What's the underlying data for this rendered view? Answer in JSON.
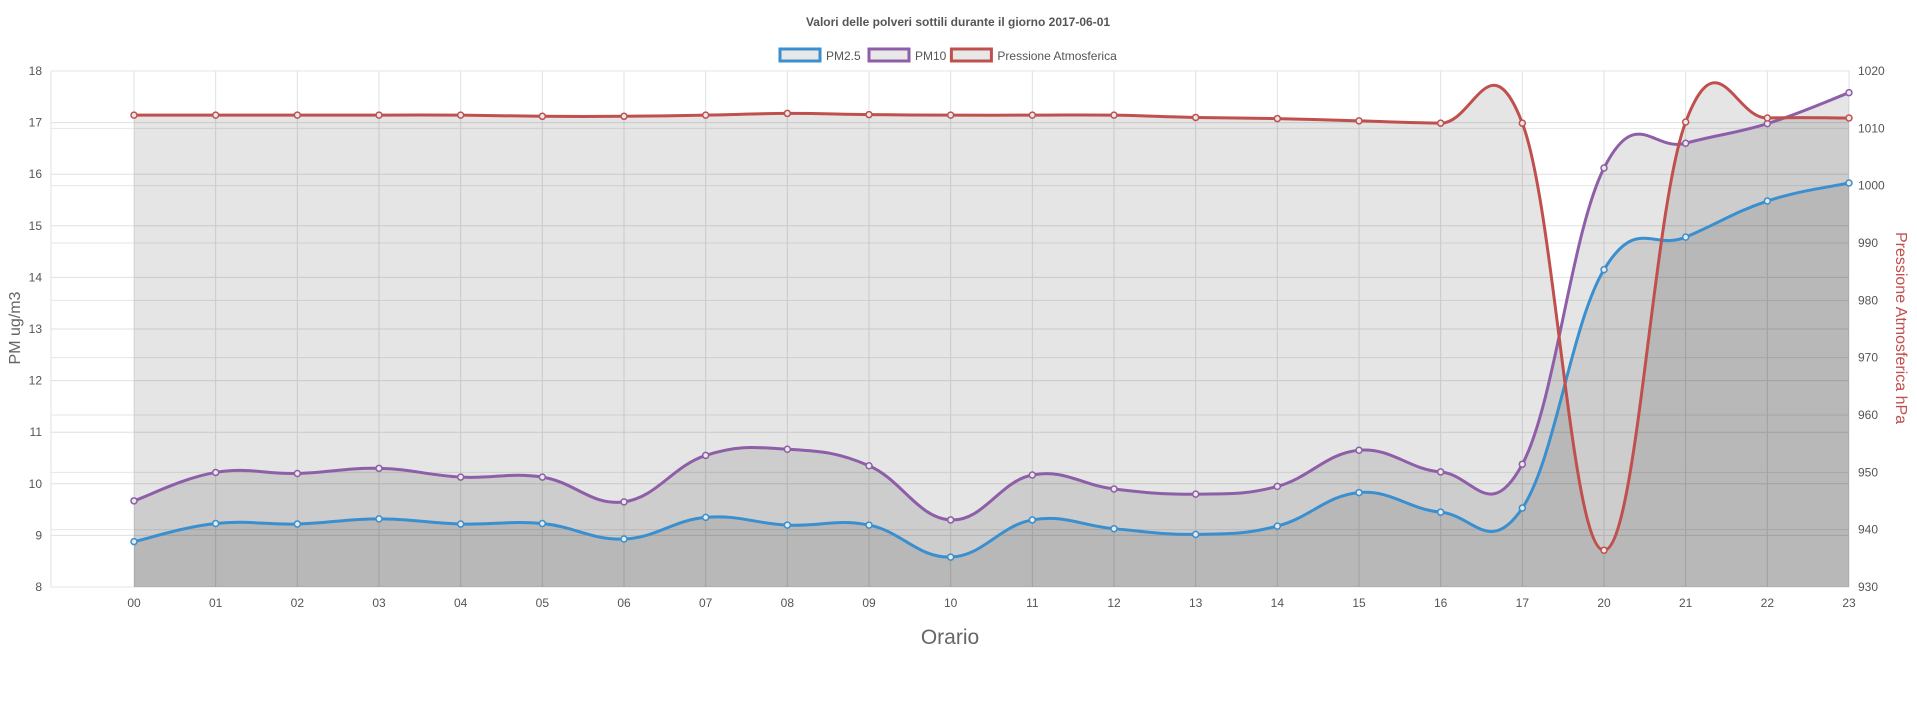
{
  "chart_data": {
    "type": "line",
    "title": "Valori delle polveri sottili durante il giorno 2017-06-01",
    "xlabel": "Orario",
    "ylabel_left": "PM ug/m3",
    "ylabel_right": "Pressione Atmosferica hPa",
    "ylim_left": [
      8,
      18
    ],
    "ylim_right": [
      930,
      1020
    ],
    "yticks_left": [
      8,
      9,
      10,
      11,
      12,
      13,
      14,
      15,
      16,
      17,
      18
    ],
    "yticks_right": [
      930,
      940,
      950,
      960,
      970,
      980,
      990,
      1000,
      1010,
      1020
    ],
    "grid": true,
    "legend_position": "top",
    "categories": [
      "00",
      "01",
      "02",
      "03",
      "04",
      "05",
      "06",
      "07",
      "08",
      "09",
      "10",
      "11",
      "12",
      "13",
      "14",
      "15",
      "16",
      "17",
      "20",
      "21",
      "22",
      "23"
    ],
    "series": [
      {
        "name": "PM2.5",
        "axis": "left",
        "color": "#3a8fcf",
        "values": [
          8.88,
          9.23,
          9.22,
          9.32,
          9.22,
          9.23,
          8.93,
          9.35,
          9.2,
          9.2,
          8.58,
          9.3,
          9.13,
          9.02,
          9.18,
          9.83,
          9.45,
          9.53,
          14.15,
          14.78,
          15.48,
          15.83
        ]
      },
      {
        "name": "PM10",
        "axis": "left",
        "color": "#8e5ea8",
        "values": [
          9.67,
          10.22,
          10.2,
          10.3,
          10.13,
          10.13,
          9.65,
          10.55,
          10.67,
          10.35,
          9.3,
          10.17,
          9.9,
          9.8,
          9.95,
          10.65,
          10.23,
          10.38,
          16.12,
          16.6,
          16.98,
          17.58
        ]
      },
      {
        "name": "Pressione Atmosferica",
        "axis": "right",
        "color": "#c0504d",
        "values": [
          1012.3,
          1012.3,
          1012.3,
          1012.3,
          1012.3,
          1012.1,
          1012.1,
          1012.3,
          1012.6,
          1012.4,
          1012.3,
          1012.3,
          1012.3,
          1011.9,
          1011.7,
          1011.3,
          1010.9,
          1010.9,
          936.4,
          1011.1,
          1011.8,
          1011.8
        ]
      }
    ]
  }
}
